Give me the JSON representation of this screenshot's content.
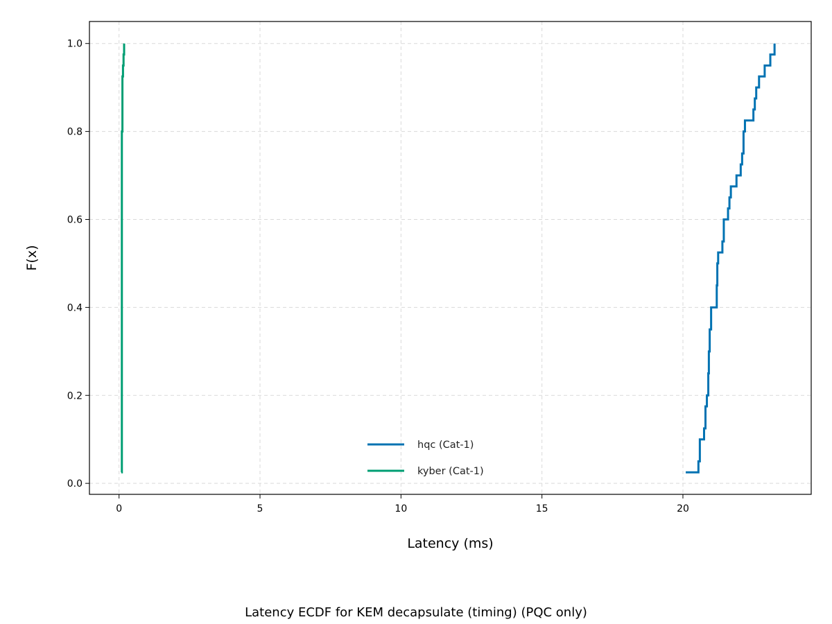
{
  "chart_data": {
    "type": "line",
    "caption": "Latency ECDF for KEM decapsulate (timing) (PQC only)",
    "xlabel": "Latency (ms)",
    "ylabel": "F(x)",
    "xlim": [
      -1.05,
      24.55
    ],
    "ylim": [
      -0.025,
      1.05
    ],
    "xticks": [
      0,
      5,
      10,
      15,
      20
    ],
    "yticks": [
      0.0,
      0.2,
      0.4,
      0.6,
      0.8,
      1.0
    ],
    "xtick_labels": [
      "0",
      "5",
      "10",
      "15",
      "20"
    ],
    "ytick_labels": [
      "0.0",
      "0.2",
      "0.4",
      "0.6",
      "0.8",
      "1.0"
    ],
    "grid": true,
    "legend_position": "lower-center",
    "series": [
      {
        "name": "hqc (Cat-1)",
        "color": "#0072B2",
        "step": "post",
        "x": [
          20.1,
          20.55,
          20.6,
          20.75,
          20.8,
          20.85,
          20.9,
          20.92,
          20.95,
          21.0,
          21.2,
          21.22,
          21.25,
          21.4,
          21.45,
          21.6,
          21.65,
          21.7,
          21.9,
          22.05,
          22.1,
          22.15,
          22.2,
          22.5,
          22.55,
          22.6,
          22.7,
          22.9,
          23.1,
          23.25
        ],
        "y": [
          0.025,
          0.05,
          0.1,
          0.125,
          0.175,
          0.2,
          0.25,
          0.3,
          0.35,
          0.4,
          0.45,
          0.5,
          0.525,
          0.55,
          0.6,
          0.625,
          0.65,
          0.675,
          0.7,
          0.725,
          0.75,
          0.8,
          0.825,
          0.85,
          0.875,
          0.9,
          0.925,
          0.95,
          0.975,
          1.0
        ]
      },
      {
        "name": "kyber (Cat-1)",
        "color": "#009E73",
        "step": "post",
        "x": [
          0.08,
          0.1,
          0.12,
          0.14,
          0.16,
          0.18
        ],
        "y": [
          0.025,
          0.8,
          0.925,
          0.95,
          0.975,
          1.0
        ]
      }
    ]
  }
}
